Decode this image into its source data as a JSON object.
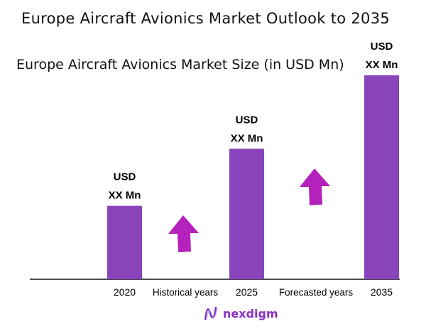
{
  "chart_data": {
    "type": "bar",
    "title": "Europe Aircraft Avionics Market Outlook to 2035",
    "subtitle": "Europe Aircraft Avionics Market Size (in USD Mn)",
    "categories": [
      "2020",
      "2025",
      "2035"
    ],
    "data_labels": [
      [
        "USD",
        "XX Mn"
      ],
      [
        "USD",
        "XX Mn"
      ],
      [
        "USD",
        "XX Mn"
      ]
    ],
    "relative_values_percent_of_max": [
      36,
      64,
      100
    ],
    "period_labels": [
      "Historical years",
      "Forecasted years"
    ],
    "grid": false,
    "bar_color": "#8a44bb",
    "arrow_color": "#b421bb",
    "arrow_icons": [
      "up-arrow",
      "up-arrow"
    ]
  },
  "logo": {
    "text": "nexdigm"
  }
}
